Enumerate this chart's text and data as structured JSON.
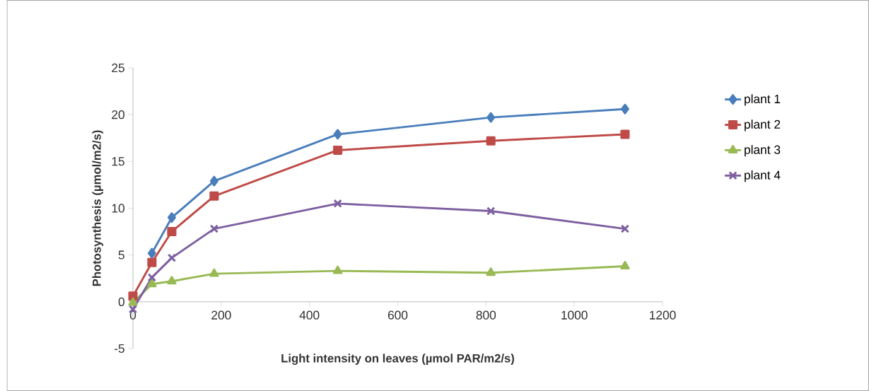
{
  "chart_data": {
    "type": "line",
    "xlabel": "Light intensity on leaves (µmol PAR/m2/s)",
    "ylabel": "Photosynthesis (µmol/m2/s)",
    "x": [
      0,
      43,
      88,
      184,
      464,
      811,
      1115
    ],
    "series": [
      {
        "name": "plant 1",
        "color": "#4a7ebb",
        "marker": "diamond",
        "values": [
          null,
          5.2,
          9.0,
          12.9,
          17.9,
          19.7,
          20.6
        ]
      },
      {
        "name": "plant 2",
        "color": "#be4b48",
        "marker": "square",
        "values": [
          0.6,
          4.2,
          7.5,
          11.3,
          16.2,
          17.2,
          17.9
        ]
      },
      {
        "name": "plant 3",
        "color": "#98b954",
        "marker": "triangle",
        "values": [
          -0.1,
          1.9,
          2.2,
          3.0,
          3.3,
          3.1,
          3.8
        ]
      },
      {
        "name": "plant 4",
        "color": "#7d5fa0",
        "marker": "cross",
        "values": [
          -0.8,
          2.6,
          4.7,
          7.8,
          10.5,
          9.7,
          7.8
        ]
      }
    ],
    "xlim": [
      0,
      1200
    ],
    "xticks": [
      0,
      200,
      400,
      600,
      800,
      1000,
      1200
    ],
    "ylim": [
      -5,
      25
    ],
    "yticks": [
      -5,
      0,
      5,
      10,
      15,
      20,
      25
    ],
    "grid": false,
    "legend": "right"
  }
}
